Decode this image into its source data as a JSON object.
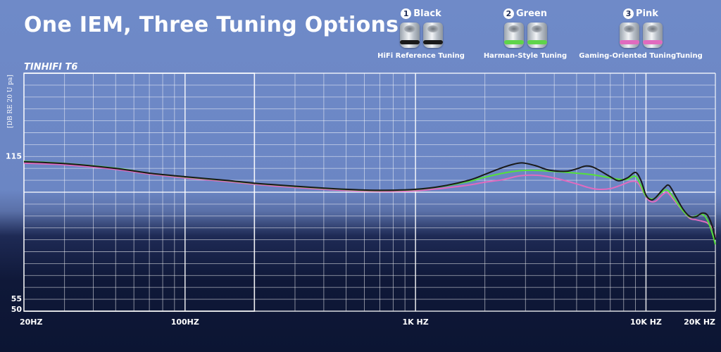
{
  "header": {
    "title": "One IEM, Three Tuning Options",
    "model": "TINHIFI T6"
  },
  "options": [
    {
      "number": "1",
      "name": "Black",
      "subtitle": "HiFi Reference Tuning",
      "ring_color": "#1a1a1a"
    },
    {
      "number": "2",
      "name": "Green",
      "subtitle": "Harman-Style Tuning",
      "ring_color": "#5fd44a"
    },
    {
      "number": "3",
      "name": "Pink",
      "subtitle": "Gaming-Oriented TuningTuning",
      "ring_color": "#e06bbf"
    }
  ],
  "chart_data": {
    "type": "line",
    "ylabel": "[DB RE 20 U pa]",
    "x_ticks": [
      "20HZ",
      "100HZ",
      "1K HZ",
      "10K HZ",
      "20K HZ"
    ],
    "x_tick_values": [
      20,
      100,
      1000,
      10000,
      20000
    ],
    "y_ticks": [
      "115",
      "55",
      "50"
    ],
    "y_tick_values": [
      115,
      55,
      50
    ],
    "xlim": [
      20,
      20000
    ],
    "ylim": [
      50,
      150
    ],
    "x_scale": "log",
    "grid": true,
    "series": [
      {
        "name": "Black",
        "color": "#1a1a1a",
        "points": [
          [
            20,
            112.8
          ],
          [
            30,
            112
          ],
          [
            50,
            110
          ],
          [
            70,
            108
          ],
          [
            100,
            106.5
          ],
          [
            150,
            105
          ],
          [
            200,
            103.8
          ],
          [
            300,
            102.5
          ],
          [
            500,
            101.2
          ],
          [
            700,
            100.8
          ],
          [
            1000,
            101.2
          ],
          [
            1300,
            102.5
          ],
          [
            1700,
            105
          ],
          [
            2000,
            107.5
          ],
          [
            2300,
            109.8
          ],
          [
            2600,
            111.5
          ],
          [
            2900,
            112.3
          ],
          [
            3300,
            111.2
          ],
          [
            3800,
            109.3
          ],
          [
            4500,
            108.8
          ],
          [
            5000,
            109.8
          ],
          [
            5500,
            111
          ],
          [
            6000,
            110.2
          ],
          [
            7000,
            106.5
          ],
          [
            7600,
            104.8
          ],
          [
            8300,
            106
          ],
          [
            9000,
            108.3
          ],
          [
            9500,
            105
          ],
          [
            10000,
            98.8
          ],
          [
            10500,
            96.8
          ],
          [
            11000,
            97.7
          ],
          [
            12000,
            101.8
          ],
          [
            12600,
            102.8
          ],
          [
            13500,
            98
          ],
          [
            14500,
            92.8
          ],
          [
            15500,
            89.8
          ],
          [
            16500,
            89.7
          ],
          [
            17500,
            91.2
          ],
          [
            18500,
            90.3
          ],
          [
            19500,
            85
          ],
          [
            20000,
            80
          ]
        ]
      },
      {
        "name": "Green",
        "color": "#55e03a",
        "points": [
          [
            20,
            113
          ],
          [
            30,
            112.1
          ],
          [
            50,
            110.1
          ],
          [
            70,
            108
          ],
          [
            100,
            106.4
          ],
          [
            150,
            104.9
          ],
          [
            200,
            103.7
          ],
          [
            300,
            102.4
          ],
          [
            500,
            101.1
          ],
          [
            700,
            100.7
          ],
          [
            1000,
            101.1
          ],
          [
            1300,
            102.4
          ],
          [
            1700,
            104.5
          ],
          [
            2000,
            106.3
          ],
          [
            2400,
            108
          ],
          [
            2800,
            109
          ],
          [
            3200,
            109.2
          ],
          [
            3600,
            109
          ],
          [
            4200,
            108.6
          ],
          [
            5000,
            108
          ],
          [
            5800,
            107.4
          ],
          [
            6600,
            106.5
          ],
          [
            7400,
            105.6
          ],
          [
            8200,
            105.3
          ],
          [
            9000,
            106.7
          ],
          [
            9500,
            102.8
          ],
          [
            10000,
            98.3
          ],
          [
            10800,
            97.2
          ],
          [
            11600,
            99.7
          ],
          [
            12400,
            100.8
          ],
          [
            13500,
            96.2
          ],
          [
            14500,
            92
          ],
          [
            15500,
            89.5
          ],
          [
            16500,
            90
          ],
          [
            17500,
            90.8
          ],
          [
            18500,
            88.2
          ],
          [
            19500,
            82
          ],
          [
            20000,
            78
          ]
        ]
      },
      {
        "name": "Pink",
        "color": "#e06bbf",
        "points": [
          [
            20,
            112.2
          ],
          [
            30,
            111.5
          ],
          [
            50,
            109.6
          ],
          [
            70,
            107.6
          ],
          [
            100,
            106
          ],
          [
            150,
            104.5
          ],
          [
            200,
            103.3
          ],
          [
            300,
            102
          ],
          [
            500,
            100.7
          ],
          [
            700,
            100.3
          ],
          [
            1000,
            100.6
          ],
          [
            1300,
            101.6
          ],
          [
            1700,
            103
          ],
          [
            2000,
            104.2
          ],
          [
            2400,
            105.3
          ],
          [
            2800,
            106.8
          ],
          [
            3200,
            107.2
          ],
          [
            3600,
            106.8
          ],
          [
            4200,
            105.5
          ],
          [
            5000,
            103.5
          ],
          [
            5600,
            102
          ],
          [
            6200,
            101.2
          ],
          [
            7000,
            101.5
          ],
          [
            7800,
            103
          ],
          [
            8600,
            104.5
          ],
          [
            9200,
            104
          ],
          [
            9800,
            99.5
          ],
          [
            10300,
            96.5
          ],
          [
            11000,
            96.2
          ],
          [
            11800,
            99
          ],
          [
            12400,
            99.8
          ],
          [
            13300,
            96.4
          ],
          [
            14500,
            92
          ],
          [
            15500,
            89
          ],
          [
            16500,
            88.4
          ],
          [
            17500,
            87.8
          ],
          [
            18500,
            87
          ],
          [
            19500,
            84.5
          ],
          [
            20000,
            81
          ]
        ]
      }
    ]
  }
}
